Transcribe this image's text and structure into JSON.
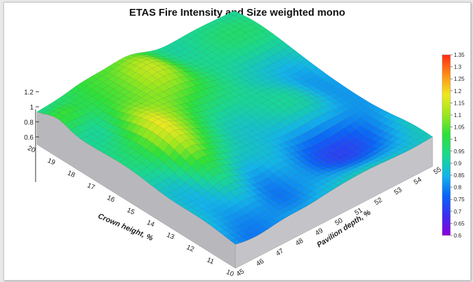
{
  "chart_data": {
    "type": "surface3d",
    "title": "ETAS Fire Intensity and Size weighted mono",
    "x_axis": {
      "label": "Crown height, %",
      "ticks": [
        "10",
        "11",
        "12",
        "13",
        "14",
        "15",
        "16",
        "17",
        "18",
        "19",
        "20"
      ],
      "range": [
        10,
        20
      ]
    },
    "y_axis": {
      "label": "Pavilion depth, %",
      "ticks": [
        "45",
        "46",
        "47",
        "48",
        "49",
        "50",
        "51",
        "52",
        "53",
        "54",
        "55"
      ],
      "range": [
        45,
        55
      ]
    },
    "z_axis": {
      "ticks": [
        "0.6",
        "0.8",
        "1",
        "1.2"
      ],
      "range": [
        0.6,
        1.35
      ]
    },
    "colorbar": {
      "ticks": [
        "1.35",
        "1.3",
        "1.25",
        "1.2",
        "1.15",
        "1.1",
        "1.05",
        "1",
        "0.95",
        "0.9",
        "0.85",
        "0.8",
        "0.75",
        "0.7",
        "0.65",
        "0.6"
      ],
      "min": 0.6,
      "max": 1.35,
      "colors": [
        "#8a00d8",
        "#3a2ef0",
        "#0a64f6",
        "#12b4ea",
        "#1ad890",
        "#2ee03a",
        "#9be71e",
        "#f0e820",
        "#ff8c16",
        "#ff2a12"
      ]
    }
  }
}
